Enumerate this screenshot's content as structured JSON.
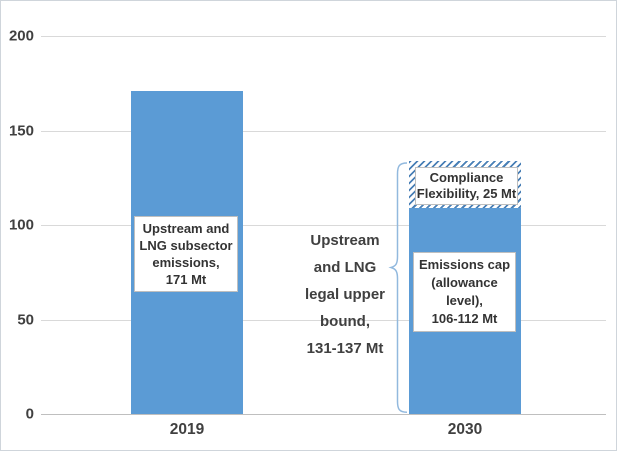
{
  "chart_data": {
    "type": "bar",
    "stacked": true,
    "title": "",
    "xlabel": "",
    "ylabel": "",
    "unit": "Mt",
    "ylim": [
      0,
      200
    ],
    "yticks": [
      200,
      150,
      100,
      50,
      0
    ],
    "grid": true,
    "legend": "none",
    "categories": [
      "2019",
      "2030"
    ],
    "bars": [
      {
        "category": "2019",
        "total": 171,
        "segments": [
          {
            "name": "upstream-lng-subsector-emissions",
            "value": 171,
            "display_value": "171 Mt",
            "fill": "solid",
            "label": "Upstream and LNG subsector emissions, 171 Mt",
            "label_lines": [
              "Upstream and",
              "LNG subsector",
              "emissions,",
              "171 Mt"
            ]
          }
        ]
      },
      {
        "category": "2030",
        "total": 134,
        "total_display": "131-137 Mt",
        "segments": [
          {
            "name": "emissions-cap-allowance-level",
            "value": 109,
            "display_value": "106-112 Mt",
            "fill": "solid",
            "label": "Emissions cap (allowance level), 106-112 Mt",
            "label_lines": [
              "Emissions cap",
              "(allowance level),",
              "106-112 Mt"
            ]
          },
          {
            "name": "compliance-flexibility",
            "value": 25,
            "display_value": "25 Mt",
            "fill": "hatched",
            "label": "Compliance Flexibility, 25 Mt",
            "label_lines": [
              "Compliance",
              "Flexibility, 25 Mt"
            ]
          }
        ]
      }
    ],
    "annotation": {
      "text": "Upstream and LNG legal upper bound, 131-137 Mt",
      "lines": [
        "Upstream",
        "and LNG",
        "legal upper",
        "bound,",
        "131-137 Mt"
      ],
      "brace_target": "full 2030 bar height"
    },
    "colors": {
      "bar_fill": "#5B9BD5",
      "hatch_stripe": "#4A80B6",
      "gridline": "#D9D9D9",
      "axis_line": "#BFBFBF",
      "axis_text": "#404040",
      "brace": "#92B9DE",
      "label_box_bg": "#FFFFFF",
      "label_box_border": "#BFBFBF"
    }
  }
}
